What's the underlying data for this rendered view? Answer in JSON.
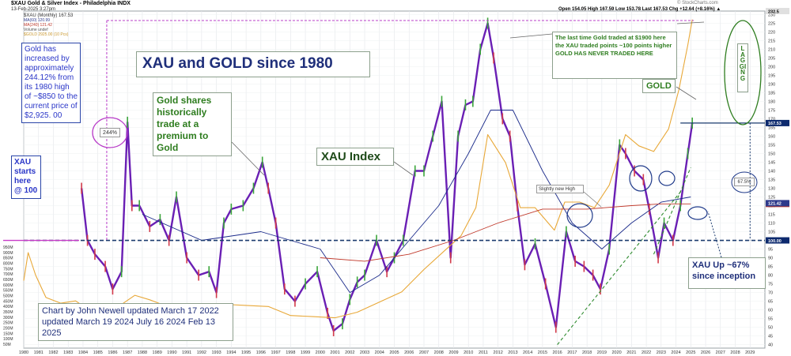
{
  "header": {
    "symbol_line": "$XAU Gold & Silver Index - Philadelphia INDX",
    "date_line": "13-Feb-2025 3:27pm",
    "series_line": "$XAU (Monthly) 167.53",
    "ma_line_1": "MA(60) 120.99",
    "ma_line_2": "MA(240) 121.42",
    "ma_line_3": "Volume undef",
    "gold_line": "$GOLD 2925.00 (10 Pcs)",
    "quote": "Open 154.05  High 167.59  Low 153.78  Last 167.53  Chg +12.64 (+8.16%) ▲",
    "watermark": "© StockCharts.com"
  },
  "annotations": {
    "title": "XAU and GOLD since 1980",
    "gold_increase": "Gold has increased by approximately 244.12% from its 1980 high of ~$850 to the current price of $2,925. 00",
    "pct_244": "244%",
    "xau_start": "XAU starts here @ 100",
    "premium": "Gold shares historically trade at a premium to Gold",
    "xau_index": "XAU Index",
    "last_time": "The last time Gold traded at $1900 here the XAU traded points ~100 points higher GOLD HAS NEVER TRADED HERE",
    "gold_label": "GOLD",
    "lagging": "LAGGING",
    "slightly_new_high": "Slightly new High",
    "pct_67": "67.5%",
    "xau_up": "XAU Up ~67% since inception",
    "credit": "Chart by John Newell updated March 17 2022 updated March 19 2024 July 16 2024 Feb 13 2025"
  },
  "chart_data": {
    "type": "line",
    "title": "XAU and GOLD since 1980",
    "xlabel": "",
    "ylabel": "",
    "x_ticks": [
      "1980",
      "1981",
      "1982",
      "1983",
      "1984",
      "1985",
      "1986",
      "1987",
      "1988",
      "1989",
      "1990",
      "1991",
      "1992",
      "1993",
      "1994",
      "1995",
      "1996",
      "1997",
      "1998",
      "1999",
      "2000",
      "2001",
      "2002",
      "2003",
      "2004",
      "2005",
      "2006",
      "2007",
      "2008",
      "2009",
      "2010",
      "2011",
      "2012",
      "2013",
      "2014",
      "2015",
      "2016",
      "2017",
      "2018",
      "2019",
      "2020",
      "2021",
      "2022",
      "2023",
      "2024",
      "2025",
      "2026",
      "2027",
      "2028",
      "2029"
    ],
    "xlim": [
      1980,
      2030
    ],
    "right_axis": {
      "name": "XAU",
      "ylim": [
        38,
        232
      ],
      "ticks": [
        40,
        45,
        50,
        55,
        60,
        65,
        70,
        75,
        80,
        85,
        90,
        95,
        100,
        105,
        110,
        115,
        120,
        125,
        130,
        135,
        140,
        145,
        150,
        155,
        160,
        165,
        170,
        175,
        180,
        185,
        190,
        195,
        200,
        205,
        210,
        215,
        220,
        225,
        230
      ],
      "marker_labels": [
        {
          "label": "232.5",
          "value": 232.5,
          "color": "#e0e0e0"
        },
        {
          "label": "167.53",
          "value": 167.53,
          "color": "#0d2a6e"
        },
        {
          "label": "120.99",
          "value": 120.99,
          "color": "#c0392b"
        },
        {
          "label": "121.42",
          "value": 121.42,
          "color": "#2e3a8c"
        },
        {
          "label": "100.00",
          "value": 100,
          "color": "#0d2a6e"
        }
      ]
    },
    "left_axis": {
      "name": "GOLD",
      "ylim": [
        0,
        3000
      ],
      "ticks": [
        "950M",
        "900M",
        "850M",
        "800M",
        "750M",
        "700M",
        "650M",
        "600M",
        "550M",
        "500M",
        "450M",
        "400M",
        "350M",
        "300M",
        "250M",
        "200M",
        "150M",
        "100M",
        "50M"
      ]
    },
    "reference_lines": [
      {
        "name": "XAU start level",
        "value": 100
      },
      {
        "name": "current XAU",
        "value": 167.53
      }
    ],
    "series": [
      {
        "name": "$XAU",
        "color": "#6a1fb4",
        "x": [
          1983.9,
          1984.3,
          1984.8,
          1985.5,
          1986.0,
          1986.6,
          1987.0,
          1987.3,
          1987.8,
          1988.5,
          1989.2,
          1989.8,
          1990.3,
          1991.0,
          1991.8,
          1992.5,
          1993.0,
          1993.5,
          1994.0,
          1994.8,
          1995.5,
          1996.1,
          1996.5,
          1997.0,
          1997.6,
          1998.3,
          1999.0,
          1999.8,
          2000.5,
          2000.9,
          2001.5,
          2002.0,
          2002.5,
          2003.0,
          2003.8,
          2004.5,
          2005.0,
          2005.6,
          2006.4,
          2007.0,
          2007.6,
          2008.2,
          2008.8,
          2009.3,
          2009.8,
          2010.3,
          2010.8,
          2011.3,
          2011.7,
          2012.3,
          2012.8,
          2013.3,
          2013.8,
          2014.5,
          2015.2,
          2015.9,
          2016.6,
          2017.2,
          2017.8,
          2018.4,
          2018.9,
          2019.5,
          2020.2,
          2020.6,
          2021.2,
          2021.8,
          2022.2,
          2022.8,
          2023.2,
          2023.8,
          2024.3,
          2024.8,
          2025.1
        ],
        "values": [
          130,
          100,
          92,
          85,
          72,
          82,
          168,
          120,
          120,
          108,
          112,
          100,
          125,
          90,
          80,
          82,
          70,
          110,
          118,
          120,
          130,
          145,
          130,
          110,
          72,
          65,
          75,
          82,
          58,
          48,
          52,
          66,
          76,
          80,
          100,
          82,
          90,
          100,
          140,
          140,
          160,
          180,
          90,
          160,
          178,
          180,
          210,
          225,
          205,
          170,
          160,
          120,
          86,
          98,
          75,
          50,
          105,
          88,
          85,
          80,
          72,
          95,
          155,
          150,
          140,
          135,
          118,
          90,
          110,
          100,
          120,
          150,
          167.53
        ]
      },
      {
        "name": "$GOLD",
        "color": "#e8a838",
        "x": [
          1980.0,
          1980.3,
          1980.8,
          1981.5,
          1982.5,
          1983.5,
          1984.5,
          1985.5,
          1986.5,
          1987.5,
          1988.5,
          1989.5,
          1990.5,
          1992.0,
          1993.5,
          1995.0,
          1996.5,
          1998.0,
          1999.5,
          2001.0,
          2002.5,
          2004.0,
          2005.5,
          2007.0,
          2008.5,
          2009.5,
          2010.5,
          2011.3,
          2012.5,
          2013.5,
          2014.5,
          2015.8,
          2016.5,
          2017.5,
          2018.5,
          2019.5,
          2020.6,
          2021.5,
          2022.5,
          2023.5,
          2024.2,
          2024.8,
          2025.1
        ],
        "values": [
          600,
          850,
          650,
          450,
          400,
          420,
          330,
          320,
          380,
          470,
          430,
          380,
          380,
          340,
          390,
          380,
          370,
          290,
          280,
          270,
          320,
          410,
          500,
          700,
          880,
          1000,
          1250,
          1900,
          1650,
          1250,
          1250,
          1050,
          1300,
          1300,
          1250,
          1450,
          1900,
          1800,
          1750,
          1950,
          2300,
          2700,
          2925
        ]
      },
      {
        "name": "MA(60)",
        "color": "#1a2a8a",
        "x": [
          1988,
          1992,
          1996,
          2000,
          2002,
          2004,
          2006,
          2008,
          2010,
          2011.5,
          2013,
          2015,
          2017,
          2019,
          2021,
          2023,
          2025
        ],
        "values": [
          115,
          100,
          105,
          95,
          70,
          80,
          100,
          120,
          150,
          175,
          175,
          140,
          110,
          95,
          110,
          122,
          125
        ]
      },
      {
        "name": "MA(240)",
        "color": "#c0392b",
        "x": [
          2000,
          2003,
          2006,
          2009,
          2012,
          2015,
          2018,
          2021,
          2023,
          2025
        ],
        "values": [
          90,
          88,
          92,
          100,
          110,
          118,
          118,
          120,
          121,
          121
        ]
      }
    ],
    "trendlines": [
      {
        "name": "support",
        "x": [
          2016,
          2024.5
        ],
        "values": [
          40,
          130
        ]
      },
      {
        "name": "support 2",
        "x": [
          2022.5,
          2025
        ],
        "values": [
          92,
          142
        ]
      }
    ],
    "grid": true,
    "legend": "top-left"
  }
}
